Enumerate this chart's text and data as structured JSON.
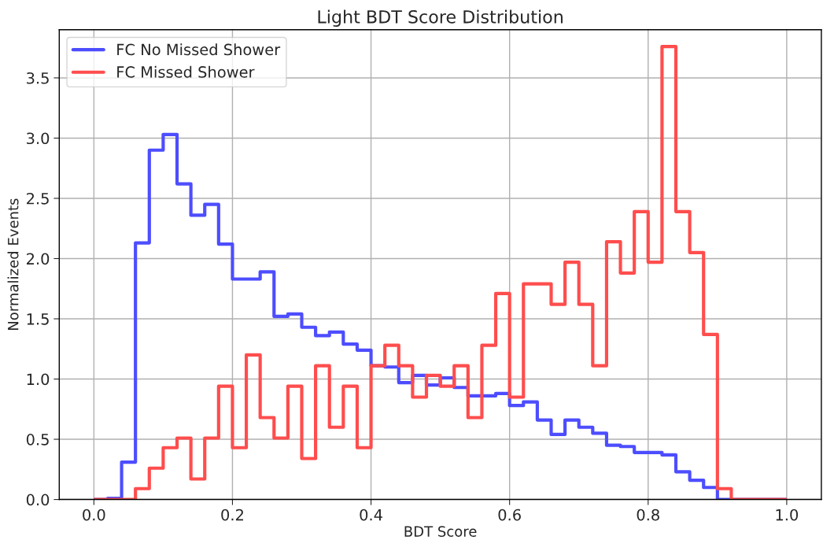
{
  "chart_data": {
    "type": "histogram",
    "title": "Light BDT Score Distribution",
    "xlabel": "BDT Score",
    "ylabel": "Normalized Events",
    "bins": [
      0.0,
      0.02,
      0.04,
      0.06,
      0.08,
      0.1,
      0.12,
      0.14,
      0.16,
      0.18,
      0.2,
      0.22,
      0.24,
      0.26,
      0.28,
      0.3,
      0.32,
      0.34,
      0.36,
      0.38,
      0.4,
      0.42,
      0.44,
      0.46,
      0.48,
      0.5,
      0.52,
      0.54,
      0.56,
      0.58,
      0.6,
      0.62,
      0.64,
      0.66,
      0.68,
      0.7,
      0.72,
      0.74,
      0.76,
      0.78,
      0.8,
      0.82,
      0.84,
      0.86,
      0.88,
      0.9,
      0.92,
      0.94,
      0.96,
      0.98,
      1.0
    ],
    "series": [
      {
        "name": "FC No Missed Shower",
        "color": "#4d4dff",
        "values": [
          0.0,
          0.01,
          0.31,
          2.13,
          2.9,
          3.03,
          2.62,
          2.36,
          2.45,
          2.12,
          1.83,
          1.83,
          1.89,
          1.52,
          1.54,
          1.43,
          1.36,
          1.39,
          1.29,
          1.24,
          1.11,
          1.1,
          0.97,
          1.03,
          0.95,
          1.01,
          0.93,
          0.86,
          0.86,
          0.88,
          0.78,
          0.81,
          0.66,
          0.54,
          0.66,
          0.6,
          0.55,
          0.45,
          0.44,
          0.39,
          0.39,
          0.37,
          0.23,
          0.16,
          0.1,
          0.0,
          0.0,
          0.0,
          0.0,
          0.0
        ]
      },
      {
        "name": "FC Missed Shower",
        "color": "#ff4d4d",
        "values": [
          0.0,
          0.0,
          0.0,
          0.09,
          0.26,
          0.43,
          0.51,
          0.17,
          0.51,
          0.94,
          0.43,
          1.2,
          0.68,
          0.51,
          0.94,
          0.34,
          1.11,
          0.6,
          0.94,
          0.43,
          1.11,
          1.28,
          1.11,
          0.85,
          1.03,
          0.94,
          1.11,
          0.68,
          1.28,
          1.71,
          0.85,
          1.79,
          1.79,
          1.62,
          1.97,
          1.62,
          1.11,
          2.14,
          1.88,
          2.39,
          1.97,
          3.76,
          2.39,
          2.05,
          1.37,
          0.09,
          0.0,
          0.0,
          0.0,
          0.0
        ]
      }
    ],
    "xlim": [
      -0.05,
      1.05
    ],
    "ylim": [
      0,
      3.9
    ],
    "xticks": [
      {
        "value": 0,
        "label": "0.0"
      },
      0.2,
      0.4,
      0.6,
      0.8,
      {
        "value": 1,
        "label": "1.0"
      }
    ],
    "yticks": [
      {
        "value": 0,
        "label": "0.0"
      },
      0.5,
      {
        "value": 1,
        "label": "1.0"
      },
      1.5,
      {
        "value": 2,
        "label": "2.0"
      },
      2.5,
      {
        "value": 3,
        "label": "3.0"
      },
      3.5
    ],
    "grid": true,
    "legend": "top left"
  }
}
